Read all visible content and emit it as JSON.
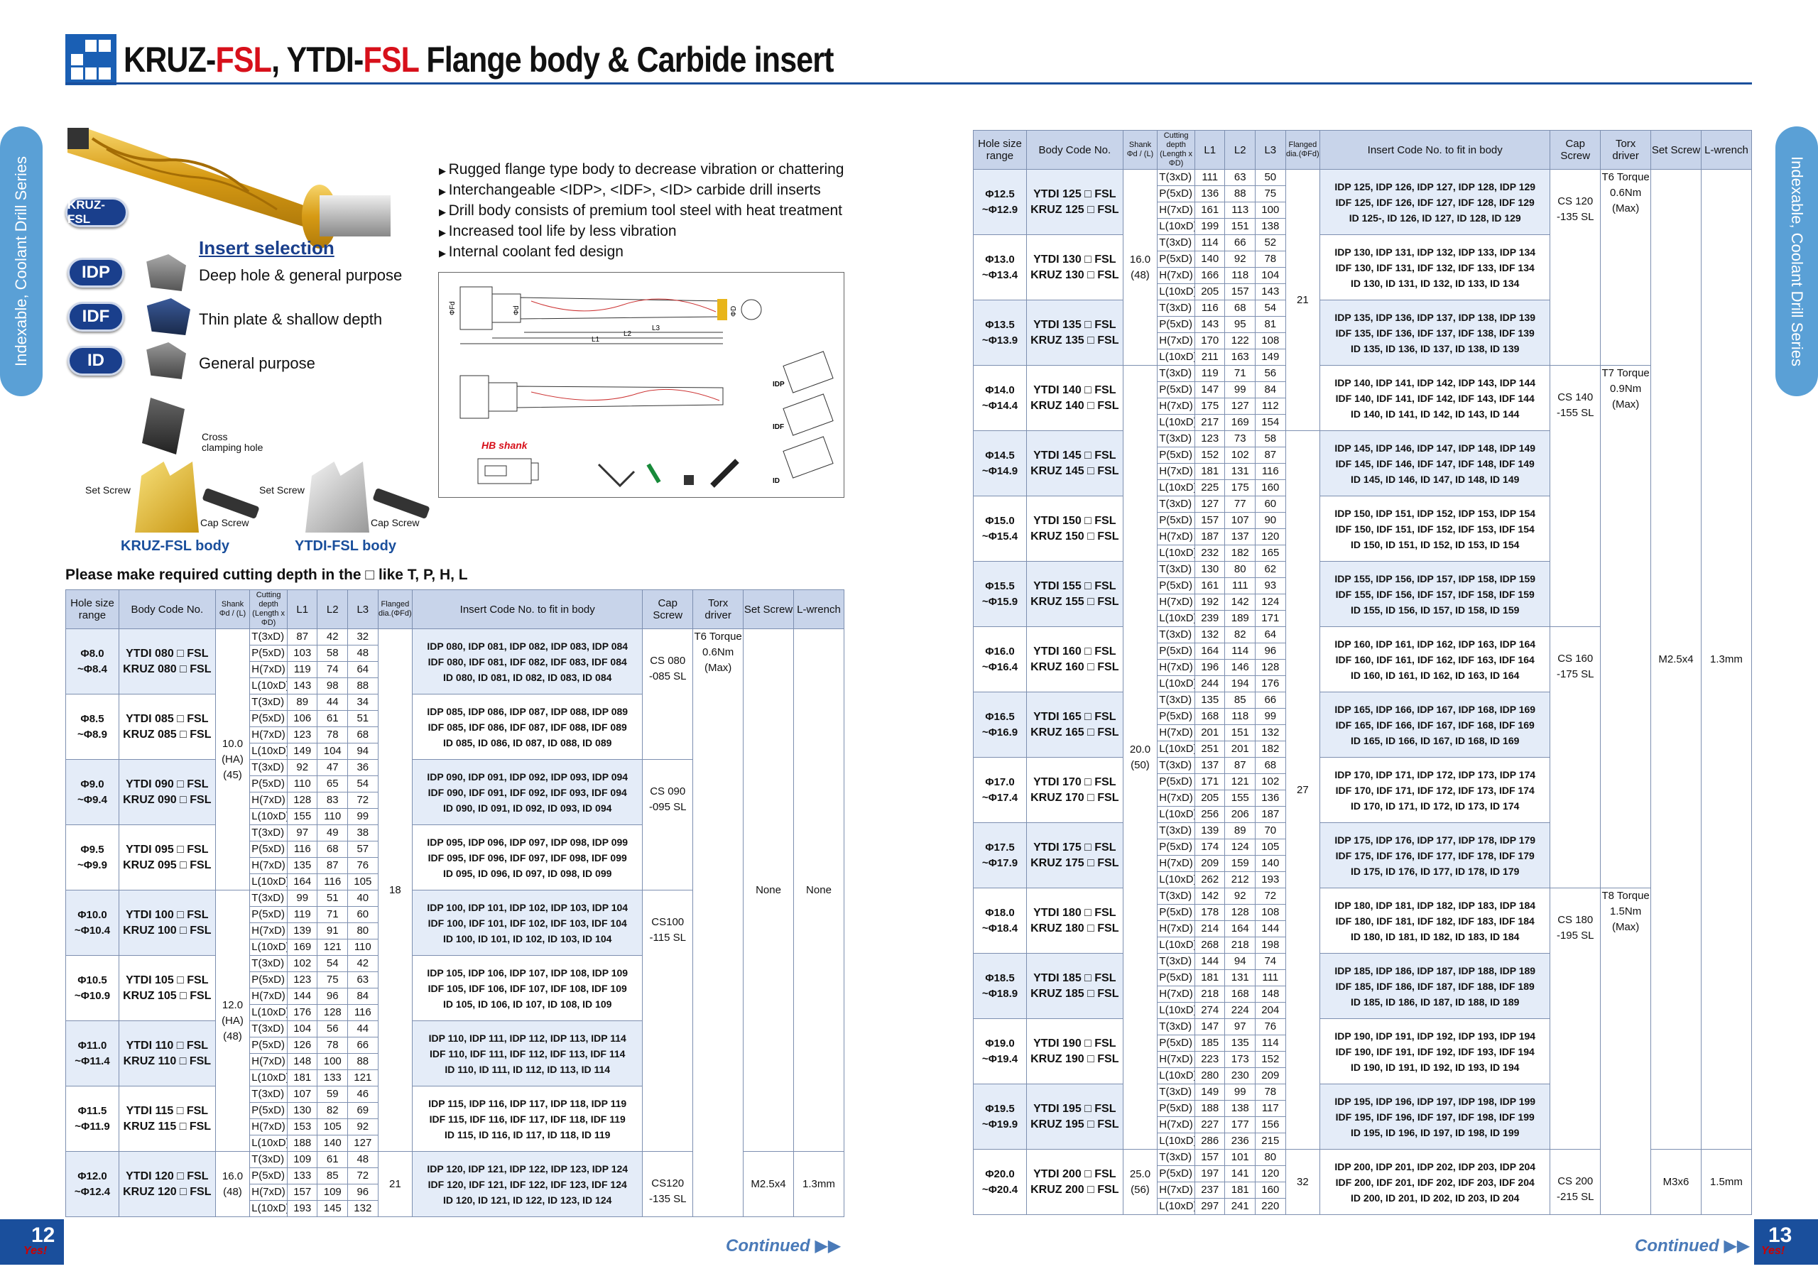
{
  "header": {
    "title_1": "KRUZ-",
    "title_2": "FSL",
    "title_3": ", YTDI-",
    "title_4": "FSL",
    "title_5": " Flange body & Carbide insert"
  },
  "side_tab": "Indexable, Coolant Drill Series",
  "product_labels": {
    "kruz_pill": "KRUZ-FSL",
    "insert_selection": "Insert selection",
    "inserts": [
      {
        "code": "IDP",
        "desc": "Deep hole & general purpose"
      },
      {
        "code": "IDF",
        "desc": "Thin plate & shallow depth"
      },
      {
        "code": "ID",
        "desc": "General purpose"
      }
    ],
    "cross_clamping": "Cross\nclamping hole",
    "set_screw": "Set Screw",
    "cap_screw": "Cap Screw",
    "kruz_body": "KRUZ-FSL body",
    "ytdi_body": "YTDI-FSL body"
  },
  "features": [
    "Rugged flange type body to decrease vibration or chattering",
    "Interchangeable <IDP>, <IDF>, <ID> carbide drill inserts",
    "Drill body consists of premium tool steel with heat treatment",
    "Increased tool life by less vibration",
    "Internal coolant fed design"
  ],
  "diagram": {
    "hb_shank": "HB shank",
    "labels": [
      "ΦFd",
      "Φd",
      "ΦD",
      "L1",
      "L2",
      "L3",
      "IDP",
      "IDF",
      "ID"
    ]
  },
  "note": "Please make required cutting depth in the □ like T, P, H, L",
  "table_headers": {
    "hole": "Hole size range",
    "body": "Body Code No.",
    "shank": "Shank Φd / (L)",
    "cutting": "Cutting depth (Length x ΦD)",
    "l1": "L1",
    "l2": "L2",
    "l3": "L3",
    "flanged": "Flanged dia.(ΦFd)",
    "insert": "Insert Code No. to fit in body",
    "cap": "Cap Screw",
    "torx": "Torx driver",
    "set": "Set Screw",
    "lwrench": "L-wrench"
  },
  "depths": [
    "T(3xD)",
    "P(5xD)",
    "H(7xD)",
    "L(10xD)"
  ],
  "left_rows": [
    {
      "h1": "Φ8.0",
      "h2": "~Φ8.4",
      "y": "YTDI 080 □ FSL",
      "k": "KRUZ 080 □ FSL",
      "L": [
        [
          87,
          42,
          32
        ],
        [
          103,
          58,
          48
        ],
        [
          119,
          74,
          64
        ],
        [
          143,
          98,
          88
        ]
      ],
      "i": [
        "IDP 080, IDP 081, IDP 082, IDP 083, IDP 084",
        "IDF 080, IDF 081, IDF 082, IDF 083, IDF 084",
        "ID 080, ID 081, ID 082, ID 083, ID 084"
      ]
    },
    {
      "h1": "Φ8.5",
      "h2": "~Φ8.9",
      "y": "YTDI 085 □ FSL",
      "k": "KRUZ 085 □ FSL",
      "L": [
        [
          89,
          44,
          34
        ],
        [
          106,
          61,
          51
        ],
        [
          123,
          78,
          68
        ],
        [
          149,
          104,
          94
        ]
      ],
      "i": [
        "IDP 085, IDP 086, IDP 087, IDP 088, IDP 089",
        "IDF 085, IDF 086, IDF 087, IDF 088, IDF 089",
        "ID 085, ID 086, ID 087, ID 088, ID 089"
      ]
    },
    {
      "h1": "Φ9.0",
      "h2": "~Φ9.4",
      "y": "YTDI 090 □ FSL",
      "k": "KRUZ 090 □ FSL",
      "L": [
        [
          92,
          47,
          36
        ],
        [
          110,
          65,
          54
        ],
        [
          128,
          83,
          72
        ],
        [
          155,
          110,
          99
        ]
      ],
      "i": [
        "IDP 090, IDP 091, IDP 092, IDP 093, IDP 094",
        "IDF 090, IDF 091, IDF 092, IDF 093, IDF 094",
        "ID 090, ID 091, ID 092, ID 093, ID 094"
      ]
    },
    {
      "h1": "Φ9.5",
      "h2": "~Φ9.9",
      "y": "YTDI 095 □ FSL",
      "k": "KRUZ 095 □ FSL",
      "L": [
        [
          97,
          49,
          38
        ],
        [
          116,
          68,
          57
        ],
        [
          135,
          87,
          76
        ],
        [
          164,
          116,
          105
        ]
      ],
      "i": [
        "IDP 095, IDP 096, IDP 097, IDP 098, IDP 099",
        "IDF 095, IDF 096, IDF 097, IDF 098, IDF 099",
        "ID 095, ID 096, ID 097, ID 098, ID 099"
      ]
    },
    {
      "h1": "Φ10.0",
      "h2": "~Φ10.4",
      "y": "YTDI 100 □ FSL",
      "k": "KRUZ 100 □ FSL",
      "L": [
        [
          99,
          51,
          40
        ],
        [
          119,
          71,
          60
        ],
        [
          139,
          91,
          80
        ],
        [
          169,
          121,
          110
        ]
      ],
      "i": [
        "IDP 100, IDP 101, IDP 102, IDP 103, IDP 104",
        "IDF 100, IDF 101, IDF 102, IDF 103, IDF 104",
        "ID 100, ID 101, ID 102, ID 103, ID 104"
      ]
    },
    {
      "h1": "Φ10.5",
      "h2": "~Φ10.9",
      "y": "YTDI 105 □ FSL",
      "k": "KRUZ 105 □ FSL",
      "L": [
        [
          102,
          54,
          42
        ],
        [
          123,
          75,
          63
        ],
        [
          144,
          96,
          84
        ],
        [
          176,
          128,
          116
        ]
      ],
      "i": [
        "IDP 105, IDP 106, IDP 107, IDP 108, IDP 109",
        "IDF 105, IDF 106, IDF 107, IDF 108, IDF 109",
        "ID 105, ID 106, ID 107, ID 108, ID 109"
      ]
    },
    {
      "h1": "Φ11.0",
      "h2": "~Φ11.4",
      "y": "YTDI 110 □ FSL",
      "k": "KRUZ 110 □ FSL",
      "L": [
        [
          104,
          56,
          44
        ],
        [
          126,
          78,
          66
        ],
        [
          148,
          100,
          88
        ],
        [
          181,
          133,
          121
        ]
      ],
      "i": [
        "IDP 110, IDP 111, IDP 112, IDP 113, IDP 114",
        "IDF 110, IDF 111, IDF 112, IDF 113, IDF 114",
        "ID 110, ID 111, ID 112, ID 113, ID 114"
      ]
    },
    {
      "h1": "Φ11.5",
      "h2": "~Φ11.9",
      "y": "YTDI 115 □ FSL",
      "k": "KRUZ 115 □ FSL",
      "L": [
        [
          107,
          59,
          46
        ],
        [
          130,
          82,
          69
        ],
        [
          153,
          105,
          92
        ],
        [
          188,
          140,
          127
        ]
      ],
      "i": [
        "IDP 115, IDP 116, IDP 117, IDP 118, IDP 119",
        "IDF 115, IDF 116, IDF 117, IDF 118, IDF 119",
        "ID 115, ID 116, ID 117, ID 118, ID 119"
      ]
    },
    {
      "h1": "Φ12.0",
      "h2": "~Φ12.4",
      "y": "YTDI 120 □ FSL",
      "k": "KRUZ 120 □ FSL",
      "L": [
        [
          109,
          61,
          48
        ],
        [
          133,
          85,
          72
        ],
        [
          157,
          109,
          96
        ],
        [
          193,
          145,
          132
        ]
      ],
      "i": [
        "IDP 120, IDP 121, IDP 122, IDP 123, IDP 124",
        "IDF 120, IDF 121, IDF 122, IDF 123, IDF 124",
        "ID 120, ID 121, ID 122, ID 123, ID 124"
      ]
    }
  ],
  "left_spans": {
    "shank": [
      {
        "rows": 4,
        "text": "10.0\n(HA)\n(45)"
      },
      {
        "rows": 4,
        "text": "12.0\n(HA)\n(48)"
      },
      {
        "rows": 1,
        "text": "16.0\n(48)"
      }
    ],
    "flanged": [
      {
        "rows": 8,
        "text": "18"
      },
      {
        "rows": 1,
        "text": "21"
      }
    ],
    "cap": [
      {
        "rows": 2,
        "text": "CS 080\n-085 SL"
      },
      {
        "rows": 2,
        "text": "CS 090\n-095 SL"
      },
      {
        "rows": 4,
        "text": "CS100\n-115 SL"
      },
      {
        "rows": 1,
        "text": "CS120\n-135 SL"
      }
    ],
    "torx": [
      {
        "rows": 9,
        "text": "T6\nTorque\n0.6Nm\n(Max)"
      }
    ],
    "set": [
      {
        "rows": 8,
        "text": "None"
      },
      {
        "rows": 1,
        "text": "M2.5x4"
      }
    ],
    "lw": [
      {
        "rows": 8,
        "text": "None"
      },
      {
        "rows": 1,
        "text": "1.3mm"
      }
    ]
  },
  "right_rows": [
    {
      "h1": "Φ12.5",
      "h2": "~Φ12.9",
      "y": "YTDI 125 □ FSL",
      "k": "KRUZ 125 □ FSL",
      "L": [
        [
          111,
          63,
          50
        ],
        [
          136,
          88,
          75
        ],
        [
          161,
          113,
          100
        ],
        [
          199,
          151,
          138
        ]
      ],
      "i": [
        "IDP 125, IDP 126, IDP 127, IDP 128, IDP 129",
        "IDF 125, IDF 126, IDF 127, IDF 128, IDF 129",
        "ID 125-, ID 126, ID 127, ID 128, ID 129"
      ]
    },
    {
      "h1": "Φ13.0",
      "h2": "~Φ13.4",
      "y": "YTDI 130 □ FSL",
      "k": "KRUZ 130 □ FSL",
      "L": [
        [
          114,
          66,
          52
        ],
        [
          140,
          92,
          78
        ],
        [
          166,
          118,
          104
        ],
        [
          205,
          157,
          143
        ]
      ],
      "i": [
        "IDP 130, IDP 131, IDP 132, IDP 133, IDP 134",
        "IDF 130, IDF 131, IDF 132, IDF 133, IDF 134",
        "ID 130, ID 131, ID 132, ID 133, ID 134"
      ]
    },
    {
      "h1": "Φ13.5",
      "h2": "~Φ13.9",
      "y": "YTDI 135 □ FSL",
      "k": "KRUZ 135 □ FSL",
      "L": [
        [
          116,
          68,
          54
        ],
        [
          143,
          95,
          81
        ],
        [
          170,
          122,
          108
        ],
        [
          211,
          163,
          149
        ]
      ],
      "i": [
        "IDP 135, IDP 136, IDP 137, IDP 138, IDP 139",
        "IDF 135, IDF 136, IDF 137, IDF 138, IDF 139",
        "ID 135, ID 136, ID 137, ID 138, ID 139"
      ]
    },
    {
      "h1": "Φ14.0",
      "h2": "~Φ14.4",
      "y": "YTDI 140 □ FSL",
      "k": "KRUZ 140 □ FSL",
      "L": [
        [
          119,
          71,
          56
        ],
        [
          147,
          99,
          84
        ],
        [
          175,
          127,
          112
        ],
        [
          217,
          169,
          154
        ]
      ],
      "i": [
        "IDP 140, IDP 141, IDP 142, IDP 143, IDP 144",
        "IDF 140, IDF 141, IDF 142, IDF 143, IDF 144",
        "ID 140, ID 141, ID 142, ID 143, ID 144"
      ]
    },
    {
      "h1": "Φ14.5",
      "h2": "~Φ14.9",
      "y": "YTDI 145 □ FSL",
      "k": "KRUZ 145 □ FSL",
      "L": [
        [
          123,
          73,
          58
        ],
        [
          152,
          102,
          87
        ],
        [
          181,
          131,
          116
        ],
        [
          225,
          175,
          160
        ]
      ],
      "i": [
        "IDP 145, IDP 146, IDP 147, IDP 148, IDP 149",
        "IDF 145, IDF 146, IDF 147, IDF 148, IDF 149",
        "ID 145, ID 146, ID 147, ID 148, ID 149"
      ]
    },
    {
      "h1": "Φ15.0",
      "h2": "~Φ15.4",
      "y": "YTDI 150 □ FSL",
      "k": "KRUZ 150 □ FSL",
      "L": [
        [
          127,
          77,
          60
        ],
        [
          157,
          107,
          90
        ],
        [
          187,
          137,
          120
        ],
        [
          232,
          182,
          165
        ]
      ],
      "i": [
        "IDP 150, IDP 151, IDP 152, IDP 153,  IDP 154",
        "IDF 150, IDF 151, IDF 152, IDF 153,  IDF 154",
        "ID 150, ID 151, ID 152, ID 153, ID 154"
      ]
    },
    {
      "h1": "Φ15.5",
      "h2": "~Φ15.9",
      "y": "YTDI 155 □ FSL",
      "k": "KRUZ 155 □ FSL",
      "L": [
        [
          130,
          80,
          62
        ],
        [
          161,
          111,
          93
        ],
        [
          192,
          142,
          124
        ],
        [
          239,
          189,
          171
        ]
      ],
      "i": [
        "IDP 155, IDP 156, IDP 157, IDP 158, IDP 159",
        "IDF 155, IDF 156, IDF 157, IDF 158, IDF 159",
        "ID 155, ID 156, ID 157, ID 158, ID 159"
      ]
    },
    {
      "h1": "Φ16.0",
      "h2": "~Φ16.4",
      "y": "YTDI 160 □ FSL",
      "k": "KRUZ 160 □ FSL",
      "L": [
        [
          132,
          82,
          64
        ],
        [
          164,
          114,
          96
        ],
        [
          196,
          146,
          128
        ],
        [
          244,
          194,
          176
        ]
      ],
      "i": [
        "IDP 160, IDP 161, IDP 162, IDP 163, IDP 164",
        "IDF 160, IDF 161, IDF 162, IDF 163, IDF 164",
        "ID 160, ID 161, ID 162, ID 163, ID 164"
      ]
    },
    {
      "h1": "Φ16.5",
      "h2": "~Φ16.9",
      "y": "YTDI 165 □ FSL",
      "k": "KRUZ 165 □ FSL",
      "L": [
        [
          135,
          85,
          66
        ],
        [
          168,
          118,
          99
        ],
        [
          201,
          151,
          132
        ],
        [
          251,
          201,
          182
        ]
      ],
      "i": [
        "IDP 165, IDP 166, IDP 167, IDP 168, IDP 169",
        "IDF 165, IDF 166, IDF 167, IDF 168, IDF 169",
        "ID 165, ID 166, ID 167, ID 168, ID 169"
      ]
    },
    {
      "h1": "Φ17.0",
      "h2": "~Φ17.4",
      "y": "YTDI 170 □ FSL",
      "k": "KRUZ 170 □ FSL",
      "L": [
        [
          137,
          87,
          68
        ],
        [
          171,
          121,
          102
        ],
        [
          205,
          155,
          136
        ],
        [
          256,
          206,
          187
        ]
      ],
      "i": [
        "IDP 170, IDP 171, IDP 172, IDP 173, IDP 174",
        "IDF 170, IDF 171, IDF 172, IDF 173, IDF 174",
        "ID 170, ID 171, ID 172, ID 173, ID 174"
      ]
    },
    {
      "h1": "Φ17.5",
      "h2": "~Φ17.9",
      "y": "YTDI 175 □ FSL",
      "k": "KRUZ 175 □ FSL",
      "L": [
        [
          139,
          89,
          70
        ],
        [
          174,
          124,
          105
        ],
        [
          209,
          159,
          140
        ],
        [
          262,
          212,
          193
        ]
      ],
      "i": [
        "IDP 175, IDP 176, IDP 177, IDP 178, IDP 179",
        "IDF 175, IDF 176, IDF 177, IDF 178, IDF 179",
        "ID 175, ID 176, ID 177, ID 178, ID 179"
      ]
    },
    {
      "h1": "Φ18.0",
      "h2": "~Φ18.4",
      "y": "YTDI 180 □ FSL",
      "k": "KRUZ 180 □ FSL",
      "L": [
        [
          142,
          92,
          72
        ],
        [
          178,
          128,
          108
        ],
        [
          214,
          164,
          144
        ],
        [
          268,
          218,
          198
        ]
      ],
      "i": [
        "IDP 180, IDP 181, IDP 182, IDP 183, IDP 184",
        "IDF 180, IDF 181, IDF 182, IDF 183, IDF 184",
        "ID 180, ID 181, ID 182, ID 183, ID 184"
      ]
    },
    {
      "h1": "Φ18.5",
      "h2": "~Φ18.9",
      "y": "YTDI 185 □ FSL",
      "k": "KRUZ 185 □ FSL",
      "L": [
        [
          144,
          94,
          74
        ],
        [
          181,
          131,
          111
        ],
        [
          218,
          168,
          148
        ],
        [
          274,
          224,
          204
        ]
      ],
      "i": [
        "IDP 185, IDP 186, IDP 187, IDP 188, IDP 189",
        "IDF 185, IDF 186, IDF 187, IDF 188, IDF 189",
        "ID 185, ID 186, ID 187, ID 188, ID 189"
      ]
    },
    {
      "h1": "Φ19.0",
      "h2": "~Φ19.4",
      "y": "YTDI 190 □ FSL",
      "k": "KRUZ 190 □ FSL",
      "L": [
        [
          147,
          97,
          76
        ],
        [
          185,
          135,
          114
        ],
        [
          223,
          173,
          152
        ],
        [
          280,
          230,
          209
        ]
      ],
      "i": [
        "IDP 190, IDP 191, IDP 192, IDP 193, IDP 194",
        "IDF 190, IDF 191, IDF 192, IDF 193, IDF 194",
        "ID 190, ID 191, ID 192, ID 193, ID 194"
      ]
    },
    {
      "h1": "Φ19.5",
      "h2": "~Φ19.9",
      "y": "YTDI 195 □ FSL",
      "k": "KRUZ 195 □ FSL",
      "L": [
        [
          149,
          99,
          78
        ],
        [
          188,
          138,
          117
        ],
        [
          227,
          177,
          156
        ],
        [
          286,
          236,
          215
        ]
      ],
      "i": [
        "IDP 195, IDP 196, IDP 197, IDP 198, IDP 199",
        "IDF 195, IDF 196, IDF 197, IDF 198, IDF 199",
        "ID 195, ID 196, ID 197, ID 198, ID 199"
      ]
    },
    {
      "h1": "Φ20.0",
      "h2": "~Φ20.4",
      "y": "YTDI 200 □ FSL",
      "k": "KRUZ 200 □ FSL",
      "L": [
        [
          157,
          101,
          80
        ],
        [
          197,
          141,
          120
        ],
        [
          237,
          181,
          160
        ],
        [
          297,
          241,
          220
        ]
      ],
      "i": [
        "IDP 200, IDP 201, IDP 202, IDP 203, IDP 204",
        "IDF 200, IDF 201, IDF 202, IDF 203, IDF 204",
        "ID 200, ID 201, ID 202, ID 203, ID 204"
      ]
    }
  ],
  "right_spans": {
    "shank": [
      {
        "rows": 3,
        "text": "16.0\n(48)"
      },
      {
        "rows": 12,
        "text": "20.0\n(50)"
      },
      {
        "rows": 1,
        "text": "25.0\n(56)"
      }
    ],
    "flanged": [
      {
        "rows": 4,
        "text": "21"
      },
      {
        "rows": 11,
        "text": "27"
      },
      {
        "rows": 1,
        "text": "32"
      }
    ],
    "cap": [
      {
        "rows": 3,
        "text": "CS 120\n-135 SL"
      },
      {
        "rows": 4,
        "text": "CS 140\n-155 SL"
      },
      {
        "rows": 4,
        "text": "CS 160\n-175 SL"
      },
      {
        "rows": 4,
        "text": "CS 180\n-195 SL"
      },
      {
        "rows": 1,
        "text": "CS 200\n-215 SL"
      }
    ],
    "torx": [
      {
        "rows": 3,
        "text": "T6\nTorque\n0.6Nm\n(Max)"
      },
      {
        "rows": 8,
        "text": "T7\nTorque\n0.9Nm\n(Max)"
      },
      {
        "rows": 5,
        "text": "T8\nTorque\n1.5Nm\n(Max)"
      }
    ],
    "set": [
      {
        "rows": 15,
        "text": "M2.5x4"
      },
      {
        "rows": 1,
        "text": "M3x6"
      }
    ],
    "lw": [
      {
        "rows": 15,
        "text": "1.3mm"
      },
      {
        "rows": 1,
        "text": "1.5mm"
      }
    ]
  },
  "footer": {
    "left_page": "12",
    "right_page": "13",
    "continued": "Continued",
    "logo": "Yes!"
  }
}
